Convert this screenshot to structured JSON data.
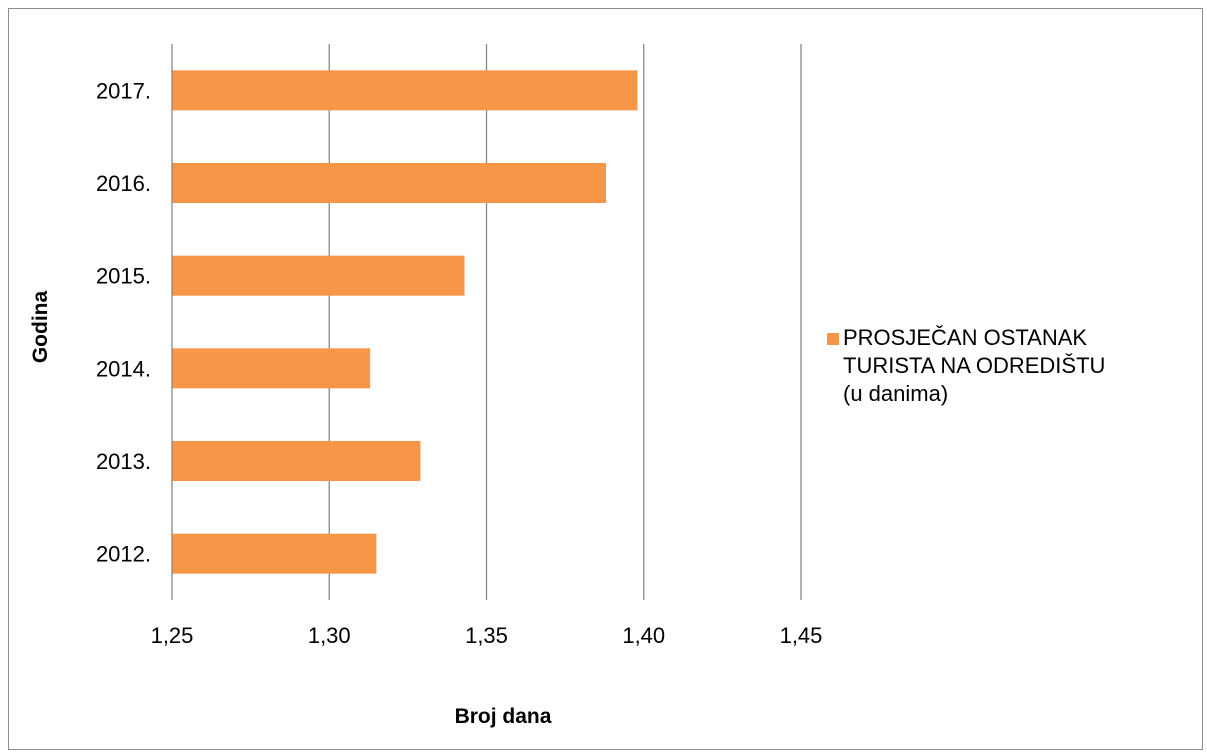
{
  "chart_data": {
    "type": "bar",
    "orientation": "horizontal",
    "categories": [
      "2012.",
      "2013.",
      "2014.",
      "2015.",
      "2016.",
      "2017."
    ],
    "series": [
      {
        "name": "PROSJEČAN OSTANAK TURISTA NA ODREDIŠTU (u danima)",
        "legend_lines": [
          "PROSJEČAN OSTANAK",
          "TURISTA NA ODREDIŠTU",
          "(u danima)"
        ],
        "values": [
          1.315,
          1.329,
          1.313,
          1.343,
          1.388,
          1.398
        ],
        "color": "#f79646"
      }
    ],
    "xlabel": "Broj dana",
    "ylabel": "Godina",
    "xlim": [
      1.25,
      1.45
    ],
    "xticks": [
      1.25,
      1.3,
      1.35,
      1.4,
      1.45
    ],
    "xtick_labels": [
      "1,25",
      "1,30",
      "1,35",
      "1,40",
      "1,45"
    ],
    "grid": "vertical",
    "legend_position": "right"
  }
}
